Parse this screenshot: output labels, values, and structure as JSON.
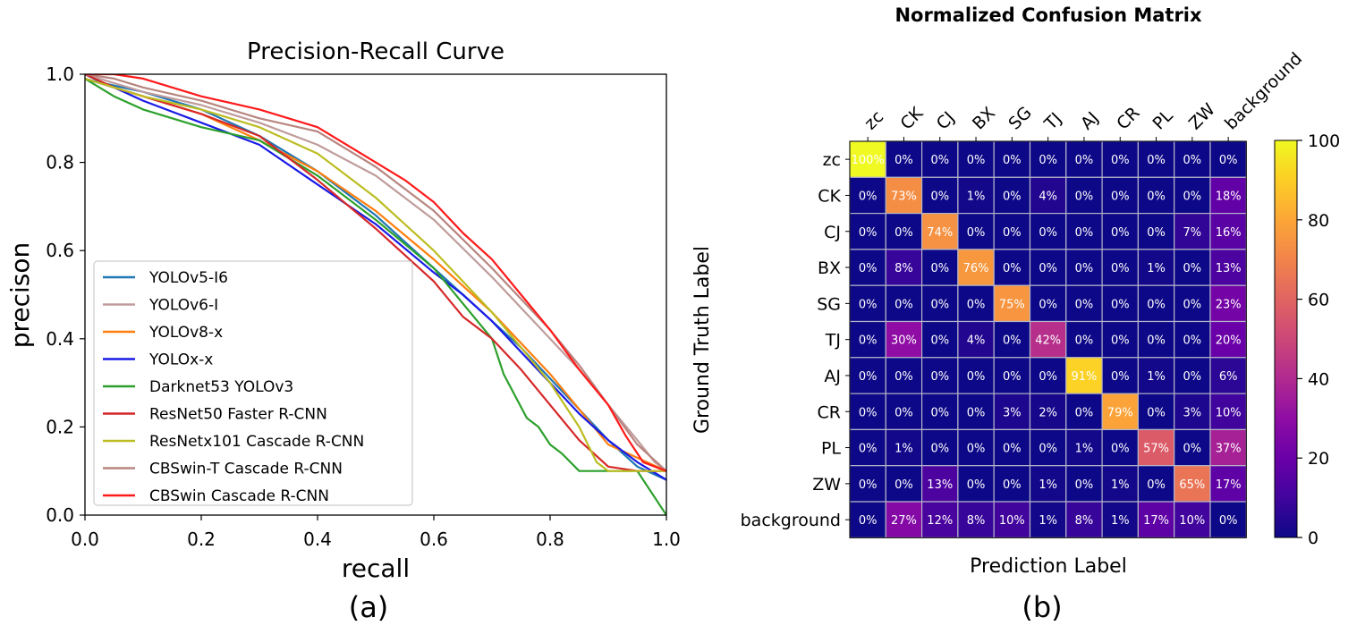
{
  "chart_data": [
    {
      "type": "line",
      "title": "Precision-Recall Curve",
      "xlabel": "recall",
      "ylabel": "precison",
      "xlim": [
        0,
        1
      ],
      "ylim": [
        0,
        1
      ],
      "xticks": [
        "0.0",
        "0.2",
        "0.4",
        "0.6",
        "0.8",
        "1.0"
      ],
      "yticks": [
        "0.0",
        "0.2",
        "0.4",
        "0.6",
        "0.8",
        "1.0"
      ],
      "panel_label": "(a)",
      "legend_position": "lower-left",
      "series": [
        {
          "name": "YOLOv5-I6",
          "color": "#1f77b4",
          "x": [
            0,
            0.03,
            0.1,
            0.2,
            0.3,
            0.4,
            0.5,
            0.6,
            0.65,
            0.7,
            0.75,
            0.8,
            0.85,
            0.9,
            0.95,
            1.0
          ],
          "y": [
            1.0,
            0.98,
            0.96,
            0.92,
            0.86,
            0.78,
            0.68,
            0.56,
            0.5,
            0.44,
            0.38,
            0.31,
            0.24,
            0.17,
            0.11,
            0.08
          ]
        },
        {
          "name": "YOLOv6-I",
          "color": "#c09c9c",
          "x": [
            0,
            0.05,
            0.1,
            0.2,
            0.3,
            0.4,
            0.5,
            0.6,
            0.7,
            0.75,
            0.8,
            0.85,
            0.9,
            0.95,
            0.98,
            1.0
          ],
          "y": [
            1.0,
            0.98,
            0.96,
            0.93,
            0.89,
            0.84,
            0.77,
            0.67,
            0.54,
            0.47,
            0.4,
            0.33,
            0.25,
            0.17,
            0.12,
            0.1
          ]
        },
        {
          "name": "YOLOv8-x",
          "color": "#ff7f0e",
          "x": [
            0,
            0.05,
            0.1,
            0.2,
            0.3,
            0.4,
            0.5,
            0.6,
            0.7,
            0.8,
            0.9,
            1.0
          ],
          "y": [
            0.99,
            0.97,
            0.95,
            0.91,
            0.85,
            0.78,
            0.69,
            0.58,
            0.46,
            0.32,
            0.16,
            0.1
          ]
        },
        {
          "name": "YOLOx-x",
          "color": "#1a1ae6",
          "x": [
            0,
            0.05,
            0.1,
            0.2,
            0.3,
            0.4,
            0.5,
            0.6,
            0.65,
            0.7,
            0.75,
            0.8,
            0.85,
            0.9,
            0.95,
            1.0
          ],
          "y": [
            0.99,
            0.97,
            0.94,
            0.89,
            0.84,
            0.75,
            0.66,
            0.55,
            0.5,
            0.44,
            0.37,
            0.3,
            0.23,
            0.17,
            0.12,
            0.08
          ]
        },
        {
          "name": "Darknet53 YOLOv3",
          "color": "#2ca02c",
          "x": [
            0,
            0.05,
            0.1,
            0.15,
            0.2,
            0.3,
            0.4,
            0.5,
            0.6,
            0.65,
            0.7,
            0.72,
            0.74,
            0.76,
            0.78,
            0.8,
            0.82,
            0.85,
            0.88,
            0.9,
            0.95,
            1.0
          ],
          "y": [
            0.99,
            0.95,
            0.92,
            0.9,
            0.88,
            0.85,
            0.77,
            0.67,
            0.56,
            0.48,
            0.4,
            0.32,
            0.27,
            0.22,
            0.2,
            0.16,
            0.14,
            0.1,
            0.1,
            0.1,
            0.1,
            0.0
          ]
        },
        {
          "name": "ResNet50 Faster R-CNN",
          "color": "#d62728",
          "x": [
            0,
            0.05,
            0.1,
            0.2,
            0.3,
            0.4,
            0.5,
            0.6,
            0.65,
            0.7,
            0.75,
            0.8,
            0.85,
            0.9,
            0.95,
            1.0
          ],
          "y": [
            1.0,
            0.97,
            0.95,
            0.91,
            0.86,
            0.76,
            0.65,
            0.53,
            0.45,
            0.4,
            0.33,
            0.25,
            0.17,
            0.11,
            0.1,
            0.1
          ]
        },
        {
          "name": "ResNetx101 Cascade R-CNN",
          "color": "#bcbd22",
          "x": [
            0,
            0.05,
            0.1,
            0.2,
            0.3,
            0.4,
            0.5,
            0.6,
            0.7,
            0.75,
            0.8,
            0.85,
            0.88,
            0.9,
            0.95,
            1.0
          ],
          "y": [
            0.99,
            0.97,
            0.95,
            0.92,
            0.88,
            0.82,
            0.72,
            0.6,
            0.46,
            0.38,
            0.3,
            0.2,
            0.12,
            0.1,
            0.1,
            0.1
          ]
        },
        {
          "name": "CBSwin-T Cascade R-CNN",
          "color": "#b8857f",
          "x": [
            0,
            0.05,
            0.1,
            0.2,
            0.3,
            0.4,
            0.5,
            0.6,
            0.7,
            0.75,
            0.8,
            0.85,
            0.9,
            0.95,
            1.0
          ],
          "y": [
            1.0,
            0.99,
            0.97,
            0.94,
            0.9,
            0.87,
            0.79,
            0.69,
            0.56,
            0.49,
            0.42,
            0.34,
            0.25,
            0.16,
            0.1
          ]
        },
        {
          "name": "CBSwin Cascade R-CNN",
          "color": "#ff1a1a",
          "x": [
            0,
            0.05,
            0.1,
            0.15,
            0.2,
            0.3,
            0.4,
            0.5,
            0.55,
            0.6,
            0.65,
            0.7,
            0.75,
            0.8,
            0.85,
            0.9,
            0.93,
            0.96,
            1.0
          ],
          "y": [
            1.0,
            1.0,
            0.99,
            0.97,
            0.95,
            0.92,
            0.88,
            0.8,
            0.76,
            0.71,
            0.64,
            0.58,
            0.5,
            0.42,
            0.33,
            0.25,
            0.18,
            0.12,
            0.1
          ]
        }
      ]
    },
    {
      "type": "heatmap",
      "title": "Normalized Confusion Matrix",
      "xlabel": "Prediction Label",
      "ylabel": "Ground Truth Label",
      "panel_label": "(b)",
      "x_categories": [
        "zc",
        "CK",
        "CJ",
        "BX",
        "SG",
        "TJ",
        "AJ",
        "CR",
        "PL",
        "ZW",
        "background"
      ],
      "y_categories": [
        "zc",
        "CK",
        "CJ",
        "BX",
        "SG",
        "TJ",
        "AJ",
        "CR",
        "PL",
        "ZW",
        "background"
      ],
      "values": [
        [
          100,
          0,
          0,
          0,
          0,
          0,
          0,
          0,
          0,
          0,
          0
        ],
        [
          0,
          73,
          0,
          1,
          0,
          4,
          0,
          0,
          0,
          0,
          18
        ],
        [
          0,
          0,
          74,
          0,
          0,
          0,
          0,
          0,
          0,
          7,
          16
        ],
        [
          0,
          8,
          0,
          76,
          0,
          0,
          0,
          0,
          1,
          0,
          13
        ],
        [
          0,
          0,
          0,
          0,
          75,
          0,
          0,
          0,
          0,
          0,
          23
        ],
        [
          0,
          30,
          0,
          4,
          0,
          42,
          0,
          0,
          0,
          0,
          20
        ],
        [
          0,
          0,
          0,
          0,
          0,
          0,
          91,
          0,
          1,
          0,
          6
        ],
        [
          0,
          0,
          0,
          0,
          3,
          2,
          0,
          79,
          0,
          3,
          10
        ],
        [
          0,
          1,
          0,
          0,
          0,
          0,
          1,
          0,
          57,
          0,
          37
        ],
        [
          0,
          0,
          13,
          0,
          0,
          1,
          0,
          1,
          0,
          65,
          17
        ],
        [
          0,
          27,
          12,
          8,
          10,
          1,
          8,
          1,
          17,
          10,
          0
        ]
      ],
      "value_suffix": "%",
      "colormap": "plasma",
      "vmin": 0,
      "vmax": 100,
      "colorbar_ticks": [
        "0",
        "20",
        "40",
        "60",
        "80",
        "100"
      ]
    }
  ]
}
